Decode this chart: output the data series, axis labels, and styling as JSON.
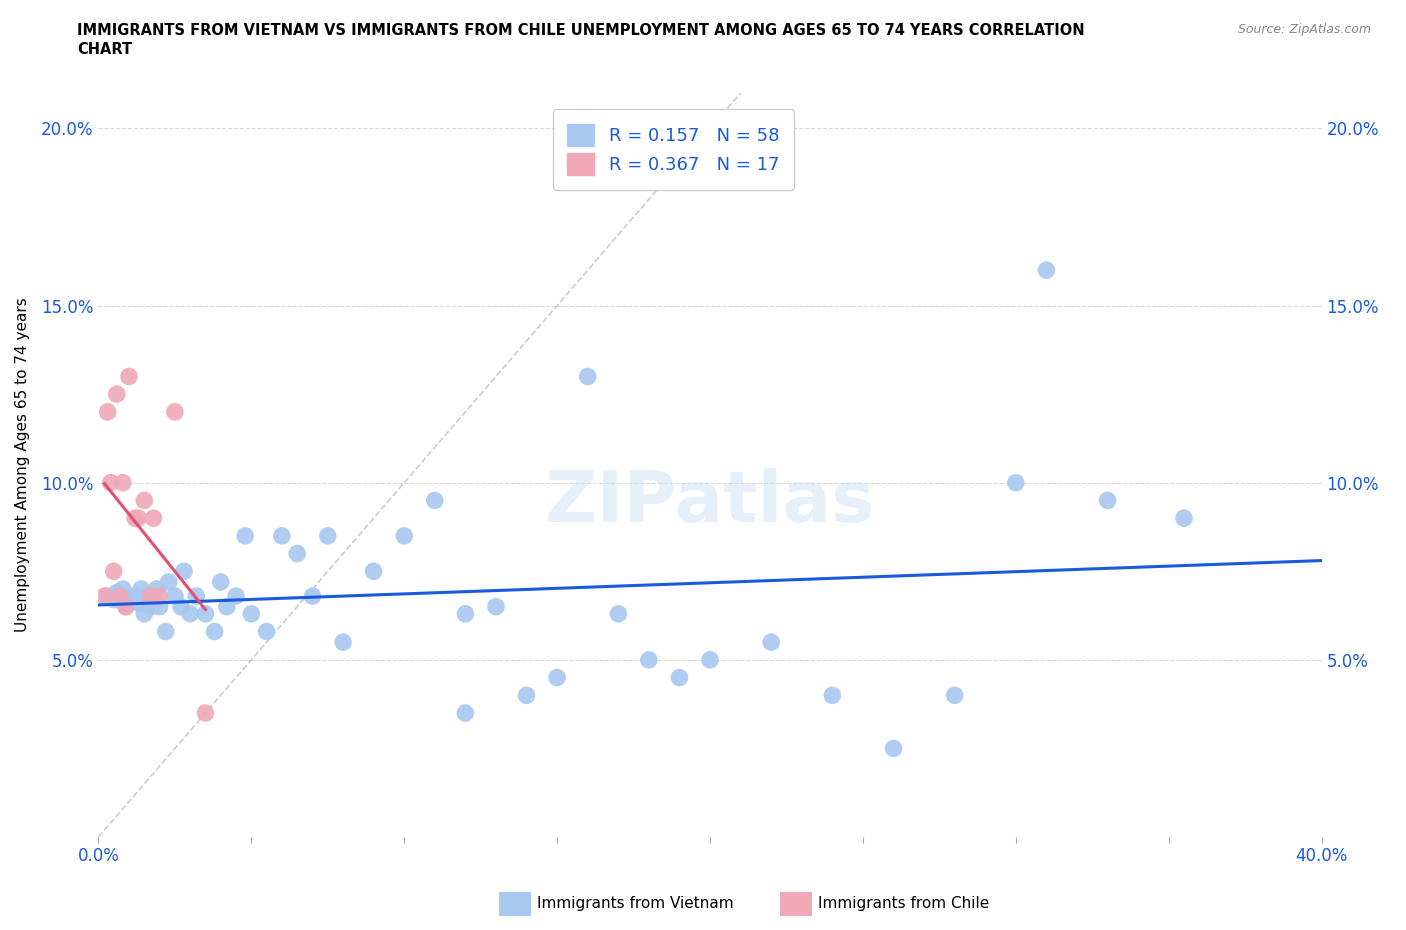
{
  "title_line1": "IMMIGRANTS FROM VIETNAM VS IMMIGRANTS FROM CHILE UNEMPLOYMENT AMONG AGES 65 TO 74 YEARS CORRELATION",
  "title_line2": "CHART",
  "source": "Source: ZipAtlas.com",
  "ylabel": "Unemployment Among Ages 65 to 74 years",
  "xlim": [
    0.0,
    0.4
  ],
  "ylim": [
    0.0,
    0.21
  ],
  "xticks": [
    0.0,
    0.05,
    0.1,
    0.15,
    0.2,
    0.25,
    0.3,
    0.35,
    0.4
  ],
  "yticks": [
    0.0,
    0.05,
    0.1,
    0.15,
    0.2
  ],
  "xticklabels": [
    "0.0%",
    "",
    "",
    "",
    "",
    "",
    "",
    "",
    "40.0%"
  ],
  "yticklabels": [
    "",
    "5.0%",
    "10.0%",
    "15.0%",
    "20.0%"
  ],
  "watermark": "ZIPatlas",
  "vietnam_color": "#a8c8f0",
  "chile_color": "#f0a8b8",
  "vietnam_R": 0.157,
  "vietnam_N": 58,
  "chile_R": 0.367,
  "chile_N": 17,
  "trend_vietnam_color": "#1a5adc",
  "trend_chile_color": "#e05070",
  "diagonal_color": "#cccccc",
  "vietnam_x": [
    0.003,
    0.005,
    0.006,
    0.007,
    0.008,
    0.009,
    0.01,
    0.011,
    0.012,
    0.013,
    0.014,
    0.015,
    0.016,
    0.017,
    0.018,
    0.019,
    0.02,
    0.022,
    0.023,
    0.025,
    0.027,
    0.028,
    0.03,
    0.032,
    0.035,
    0.038,
    0.04,
    0.042,
    0.045,
    0.048,
    0.05,
    0.055,
    0.06,
    0.065,
    0.07,
    0.075,
    0.08,
    0.09,
    0.1,
    0.11,
    0.12,
    0.13,
    0.14,
    0.15,
    0.16,
    0.17,
    0.18,
    0.19,
    0.2,
    0.22,
    0.24,
    0.26,
    0.28,
    0.3,
    0.31,
    0.33,
    0.355,
    0.12
  ],
  "vietnam_y": [
    0.068,
    0.067,
    0.069,
    0.067,
    0.07,
    0.065,
    0.068,
    0.067,
    0.068,
    0.066,
    0.07,
    0.063,
    0.068,
    0.065,
    0.067,
    0.07,
    0.065,
    0.058,
    0.072,
    0.068,
    0.065,
    0.075,
    0.063,
    0.068,
    0.063,
    0.058,
    0.072,
    0.065,
    0.068,
    0.085,
    0.063,
    0.058,
    0.085,
    0.08,
    0.068,
    0.085,
    0.055,
    0.075,
    0.085,
    0.095,
    0.063,
    0.065,
    0.04,
    0.045,
    0.13,
    0.063,
    0.05,
    0.045,
    0.05,
    0.055,
    0.04,
    0.025,
    0.04,
    0.1,
    0.16,
    0.095,
    0.09,
    0.035
  ],
  "chile_x": [
    0.002,
    0.003,
    0.004,
    0.005,
    0.006,
    0.007,
    0.008,
    0.009,
    0.01,
    0.012,
    0.013,
    0.015,
    0.017,
    0.018,
    0.02,
    0.025,
    0.035
  ],
  "chile_y": [
    0.068,
    0.12,
    0.1,
    0.075,
    0.125,
    0.068,
    0.1,
    0.065,
    0.13,
    0.09,
    0.09,
    0.095,
    0.068,
    0.09,
    0.068,
    0.12,
    0.035
  ],
  "legend_label_viet": "Immigrants from Vietnam",
  "legend_label_chile": "Immigrants from Chile"
}
